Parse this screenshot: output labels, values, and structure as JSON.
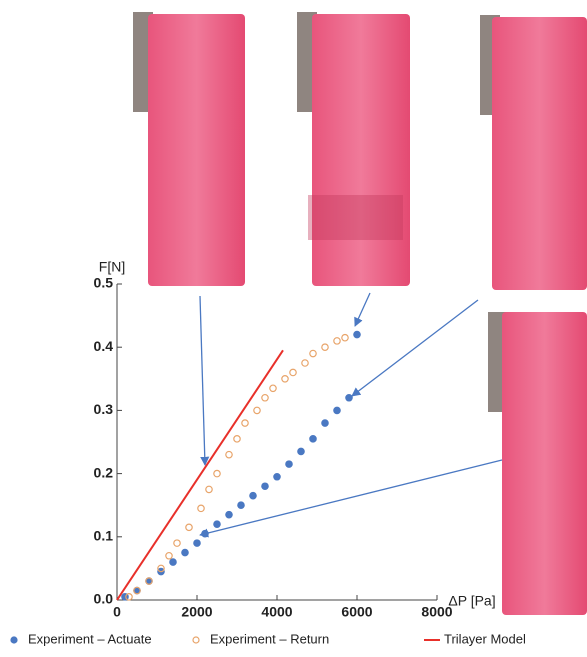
{
  "chart_data": {
    "type": "scatter",
    "x_label": "ΔP [Pa]",
    "y_label": "F[N]",
    "xlim": [
      0,
      8000
    ],
    "xticks": [
      0,
      2000,
      4000,
      6000,
      8000
    ],
    "ylim": [
      0,
      0.5
    ],
    "yticks": [
      {
        "value": 0,
        "label": "0.0"
      },
      0.1,
      0.2,
      0.3,
      0.4,
      0.5
    ],
    "series": [
      {
        "name": "Experiment – Actuate",
        "color": "#4a78c2",
        "marker": "filled",
        "x": [
          200,
          500,
          800,
          1100,
          1400,
          1700,
          2000,
          2200,
          2500,
          2800,
          3100,
          3400,
          3700,
          4000,
          4300,
          4600,
          4900,
          5200,
          5500,
          5800,
          6000
        ],
        "values": [
          0.005,
          0.015,
          0.03,
          0.045,
          0.06,
          0.075,
          0.09,
          0.105,
          0.12,
          0.135,
          0.15,
          0.165,
          0.18,
          0.195,
          0.215,
          0.235,
          0.255,
          0.28,
          0.3,
          0.32,
          0.42
        ]
      },
      {
        "name": "Experiment – Return",
        "color": "#e8a46a",
        "marker": "open",
        "x": [
          5700,
          5500,
          5200,
          4900,
          4700,
          4400,
          4200,
          3900,
          3700,
          3500,
          3200,
          3000,
          2800,
          2500,
          2300,
          2100,
          1800,
          1500,
          1300,
          1100,
          800,
          500,
          300
        ],
        "values": [
          0.415,
          0.41,
          0.4,
          0.39,
          0.375,
          0.36,
          0.35,
          0.335,
          0.32,
          0.3,
          0.28,
          0.255,
          0.23,
          0.2,
          0.175,
          0.145,
          0.115,
          0.09,
          0.07,
          0.05,
          0.03,
          0.015,
          0.005
        ]
      },
      {
        "name": "Trilayer Model",
        "color": "#e8302a",
        "marker": "line",
        "x": [
          0,
          4150
        ],
        "values": [
          0,
          0.395
        ]
      }
    ]
  }
}
